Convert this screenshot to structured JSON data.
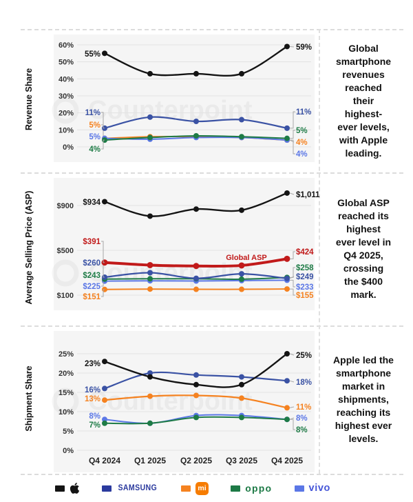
{
  "watermark": "Counterpoint",
  "legend": [
    {
      "name": "Apple",
      "swatch": "#141414",
      "color": "#141414"
    },
    {
      "name": "Samsung",
      "swatch": "#2b3a9e",
      "label": "SAMSUNG",
      "color": "#2b3a9e"
    },
    {
      "name": "Xiaomi",
      "swatch": "#f58220",
      "logo_text": "mi",
      "logo_bg": "#f67c01",
      "color": "#f58220"
    },
    {
      "name": "OPPO",
      "swatch": "#1d7a46",
      "label": "oppo",
      "color": "#1d7a46"
    },
    {
      "name": "vivo",
      "swatch": "#5b77e6",
      "label": "vivo",
      "color": "#4656d8"
    }
  ],
  "chart_data": [
    {
      "type": "line",
      "axis_title": "Revenue Share",
      "categories": [
        "Q4 2024",
        "Q1 2025",
        "Q2 2025",
        "Q3 2025",
        "Q4 2025"
      ],
      "show_x_labels": false,
      "ylim": [
        0,
        60
      ],
      "yticks": [
        {
          "label": "60%",
          "value": 60
        },
        {
          "label": "50%",
          "value": 50
        },
        {
          "label": "40%",
          "value": 40
        },
        {
          "label": "30%",
          "value": 30
        },
        {
          "label": "20%",
          "value": 20
        },
        {
          "label": "10%",
          "value": 10
        },
        {
          "label": "0%",
          "value": 0
        }
      ],
      "note": "Global\nsmartphone\nrevenues\nreached\ntheir\nhighest-\never levels,\nwith Apple\nleading.",
      "series": [
        {
          "name": "Xiaomi",
          "color": "#f58220",
          "w": 2,
          "values": [
            5,
            6,
            6,
            5.5,
            4
          ],
          "label_left": {
            "text": "5%",
            "ly": 139
          },
          "label_right": {
            "text": "4%",
            "ly": 164
          }
        },
        {
          "name": "vivo",
          "color": "#5b77e6",
          "w": 2,
          "values": [
            5,
            4.5,
            5.5,
            5.5,
            4
          ],
          "label_left": {
            "text": "5%",
            "ly": 156
          },
          "label_right": {
            "text": "4%",
            "ly": 181
          }
        },
        {
          "name": "OPPO",
          "color": "#1e7b46",
          "w": 2,
          "values": [
            4,
            5.5,
            6.5,
            6,
            5
          ],
          "label_left": {
            "text": "4%",
            "ly": 174
          },
          "label_right": {
            "text": "5%",
            "ly": 147
          }
        },
        {
          "name": "Samsung",
          "color": "#3a52a4",
          "w": 2.2,
          "values": [
            11,
            17.5,
            15,
            16,
            11
          ],
          "label_left": {
            "text": "11%",
            "ly": 121
          },
          "label_right": {
            "text": "11%",
            "ly": 120
          }
        },
        {
          "name": "Apple",
          "color": "#141414",
          "w": 2.4,
          "values": [
            55,
            43,
            43,
            43,
            59
          ],
          "label_left": {
            "text": "55%",
            "ly": 36
          },
          "label_right": {
            "text": "59%",
            "ly": 26
          }
        }
      ]
    },
    {
      "type": "line",
      "axis_title": "Average Selling Price (ASP)",
      "categories": [
        "Q4 2024",
        "Q1 2025",
        "Q2 2025",
        "Q3 2025",
        "Q4 2025"
      ],
      "show_x_labels": false,
      "ylim": [
        100,
        900
      ],
      "yticks": [
        {
          "label": "$900",
          "value": 900
        },
        {
          "label": "$500",
          "value": 500
        },
        {
          "label": "$100",
          "value": 100
        }
      ],
      "note": "Global ASP\nreached its\nhighest\never level in\nQ4 2025,\ncrossing\nthe $400\nmark.",
      "annotation": {
        "text": "Global ASP",
        "x": 358,
        "y": 127,
        "color": "#c11a1a"
      },
      "series": [
        {
          "name": "Xiaomi",
          "color": "#f58220",
          "w": 2,
          "values": [
            151,
            154,
            152,
            152,
            155
          ],
          "label_left": {
            "text": "$151",
            "ly": 180
          },
          "label_right": {
            "text": "$155",
            "ly": 178
          }
        },
        {
          "name": "vivo",
          "color": "#5b77e6",
          "w": 2,
          "values": [
            225,
            228,
            226,
            230,
            233
          ],
          "label_left": {
            "text": "$225",
            "ly": 165
          },
          "label_right": {
            "text": "$233",
            "ly": 166
          }
        },
        {
          "name": "OPPO",
          "color": "#1e7b46",
          "w": 2,
          "values": [
            243,
            246,
            246,
            242,
            258
          ],
          "label_left": {
            "text": "$243",
            "ly": 149
          },
          "label_right": {
            "text": "$258",
            "ly": 138
          }
        },
        {
          "name": "Samsung",
          "color": "#3a52a4",
          "w": 2.2,
          "values": [
            260,
            300,
            250,
            290,
            249
          ],
          "label_left": {
            "text": "$260",
            "ly": 131
          },
          "label_right": {
            "text": "$249",
            "ly": 151
          }
        },
        {
          "name": "Global ASP",
          "color": "#c11a1a",
          "w": 4,
          "values": [
            391,
            368,
            360,
            365,
            424
          ],
          "label_left": {
            "text": "$391",
            "ly": 100
          },
          "label_right": {
            "text": "$424",
            "ly": 115
          }
        },
        {
          "name": "Apple",
          "color": "#141414",
          "w": 2.4,
          "values": [
            934,
            805,
            868,
            858,
            1011
          ],
          "label_left": {
            "text": "$934",
            "ly": 43
          },
          "label_right": {
            "text": "$1,011",
            "ly": 32
          }
        }
      ]
    },
    {
      "type": "line",
      "axis_title": "Shipment Share",
      "categories": [
        "Q4 2024",
        "Q1 2025",
        "Q2 2025",
        "Q3 2025",
        "Q4 2025"
      ],
      "show_x_labels": true,
      "ylim": [
        0,
        25
      ],
      "yticks": [
        {
          "label": "25%",
          "value": 25
        },
        {
          "label": "20%",
          "value": 20
        },
        {
          "label": "15%",
          "value": 15
        },
        {
          "label": "10%",
          "value": 10
        },
        {
          "label": "5%",
          "value": 5
        },
        {
          "label": "0%",
          "value": 0
        }
      ],
      "note": "Apple led the\nsmartphone\nmarket in\nshipments,\nreaching its\nhighest ever\nlevels.",
      "series": [
        {
          "name": "Xiaomi",
          "color": "#f58220",
          "w": 2.2,
          "values": [
            13,
            14,
            14.2,
            13.5,
            11
          ],
          "label_left": {
            "text": "13%",
            "ly": 106
          },
          "label_right": {
            "text": "11%",
            "ly": 118
          }
        },
        {
          "name": "vivo",
          "color": "#5b77e6",
          "w": 2,
          "values": [
            8,
            7,
            9,
            9,
            8
          ],
          "label_left": {
            "text": "8%",
            "ly": 131
          },
          "label_right": {
            "text": "8%",
            "ly": 134
          }
        },
        {
          "name": "OPPO",
          "color": "#1e7b46",
          "w": 2,
          "values": [
            7,
            7,
            8.5,
            8.5,
            8
          ],
          "label_left": {
            "text": "7%",
            "ly": 144
          },
          "label_right": {
            "text": "8%",
            "ly": 151
          }
        },
        {
          "name": "Samsung",
          "color": "#3a52a4",
          "w": 2.2,
          "values": [
            16,
            20,
            19.5,
            19,
            18
          ],
          "label_left": {
            "text": "16%",
            "ly": 93
          },
          "label_right": {
            "text": "18%",
            "ly": 82
          }
        },
        {
          "name": "Apple",
          "color": "#141414",
          "w": 2.4,
          "values": [
            23,
            19,
            17,
            17,
            25
          ],
          "label_left": {
            "text": "23%",
            "ly": 55
          },
          "label_right": {
            "text": "25%",
            "ly": 43
          }
        }
      ]
    }
  ]
}
